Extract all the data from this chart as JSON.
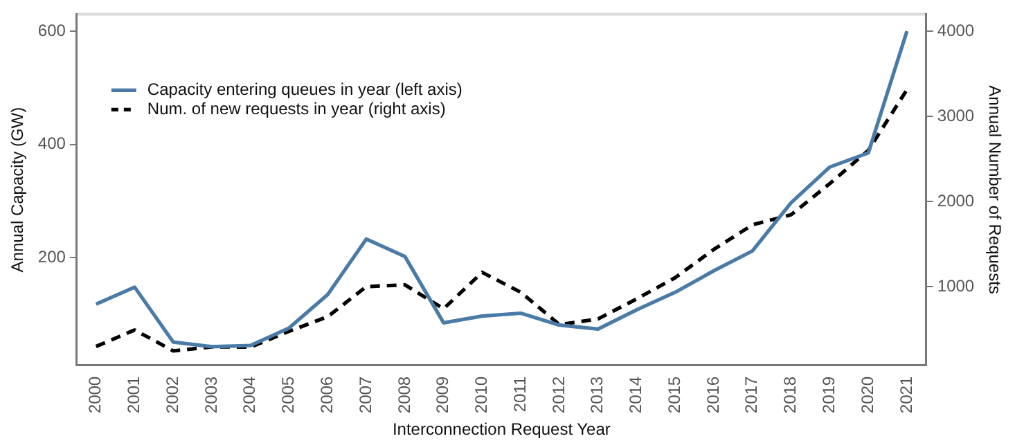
{
  "chart_data": {
    "type": "line",
    "xlabel": "Interconnection Request Year",
    "ylabel": "Annual Capacity (GW)",
    "y2label": "Annual Number of Requests",
    "categories": [
      "2000",
      "2001",
      "2002",
      "2003",
      "2004",
      "2005",
      "2006",
      "2007",
      "2008",
      "2009",
      "2010",
      "2011",
      "2012",
      "2013",
      "2014",
      "2015",
      "2016",
      "2017",
      "2018",
      "2019",
      "2020",
      "2021"
    ],
    "series": [
      {
        "name": "Capacity entering queues in year (left axis)",
        "color": "#4a7ba7",
        "line_style": "solid",
        "values": [
          118,
          148,
          51,
          43,
          45,
          76,
          135,
          233,
          202,
          85,
          97,
          102,
          81,
          74,
          108,
          139,
          177,
          212,
          297,
          360,
          385,
          600
        ]
      },
      {
        "name": "Num. of new requests in year (right axis)",
        "color": "#000000",
        "line_style": "dashed",
        "axis": "y2",
        "values": [
          297,
          490,
          245,
          292,
          290,
          475,
          647,
          1000,
          1020,
          740,
          1167,
          933,
          553,
          620,
          855,
          1105,
          1437,
          1725,
          1844,
          2209,
          2600,
          3312
        ]
      }
    ],
    "ylim": [
      10,
      630
    ],
    "yticks": [
      200,
      400,
      600
    ],
    "y2lim": [
      75,
      4200
    ],
    "y2ticks": [
      1000,
      2000,
      3000,
      4000
    ],
    "grid": false,
    "legend": "top left",
    "marker": "none"
  }
}
